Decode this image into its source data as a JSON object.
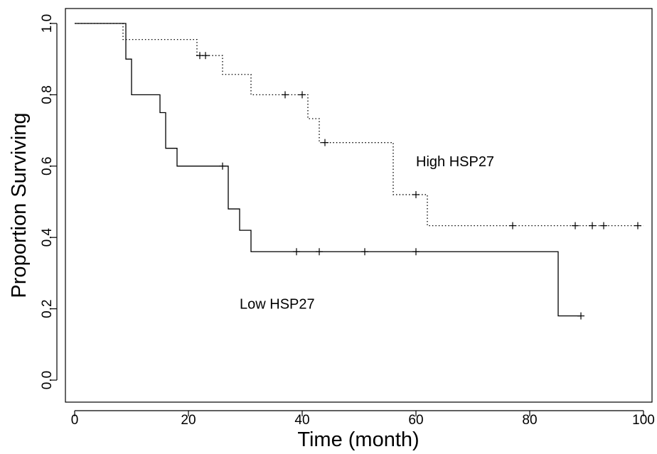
{
  "chart_data": {
    "type": "line",
    "title": "",
    "xlabel": "Time (month)",
    "ylabel": "Proportion Surviving",
    "xlim": [
      0,
      100
    ],
    "ylim": [
      0,
      1
    ],
    "xticks": [
      "0",
      "20",
      "40",
      "60",
      "80",
      "100"
    ],
    "yticks": [
      "0.0",
      "0.2",
      "0.4",
      "0.6",
      "0.8",
      "1.0"
    ],
    "grid": false,
    "legend": "none",
    "annotations": [
      {
        "text": "High HSP27",
        "x": 60,
        "y": 0.6
      },
      {
        "text": "Low HSP27",
        "x": 29,
        "y": 0.2
      }
    ],
    "series": [
      {
        "name": "High HSP27",
        "line_style": "dotted",
        "steps": [
          [
            0,
            1.0
          ],
          [
            8.5,
            0.955
          ],
          [
            21.5,
            0.91
          ],
          [
            26,
            0.857
          ],
          [
            31,
            0.8
          ],
          [
            41,
            0.733
          ],
          [
            43,
            0.666
          ],
          [
            56,
            0.52
          ],
          [
            62,
            0.433
          ]
        ],
        "end_x": 100,
        "censored": [
          [
            22,
            0.91
          ],
          [
            23,
            0.91
          ],
          [
            37,
            0.8
          ],
          [
            40,
            0.8
          ],
          [
            44,
            0.666
          ],
          [
            60,
            0.52
          ],
          [
            77,
            0.433
          ],
          [
            88,
            0.433
          ],
          [
            91,
            0.433
          ],
          [
            93,
            0.433
          ],
          [
            99,
            0.433
          ]
        ]
      },
      {
        "name": "Low HSP27",
        "line_style": "solid",
        "steps": [
          [
            0,
            1.0
          ],
          [
            9,
            0.9
          ],
          [
            10,
            0.8
          ],
          [
            15,
            0.75
          ],
          [
            16,
            0.65
          ],
          [
            18,
            0.6
          ],
          [
            27,
            0.48
          ],
          [
            29,
            0.42
          ],
          [
            31,
            0.36
          ],
          [
            85,
            0.18
          ]
        ],
        "end_x": 89,
        "censored": [
          [
            26,
            0.6
          ],
          [
            39,
            0.36
          ],
          [
            43,
            0.36
          ],
          [
            51,
            0.36
          ],
          [
            60,
            0.36
          ],
          [
            89,
            0.18
          ]
        ]
      }
    ]
  }
}
